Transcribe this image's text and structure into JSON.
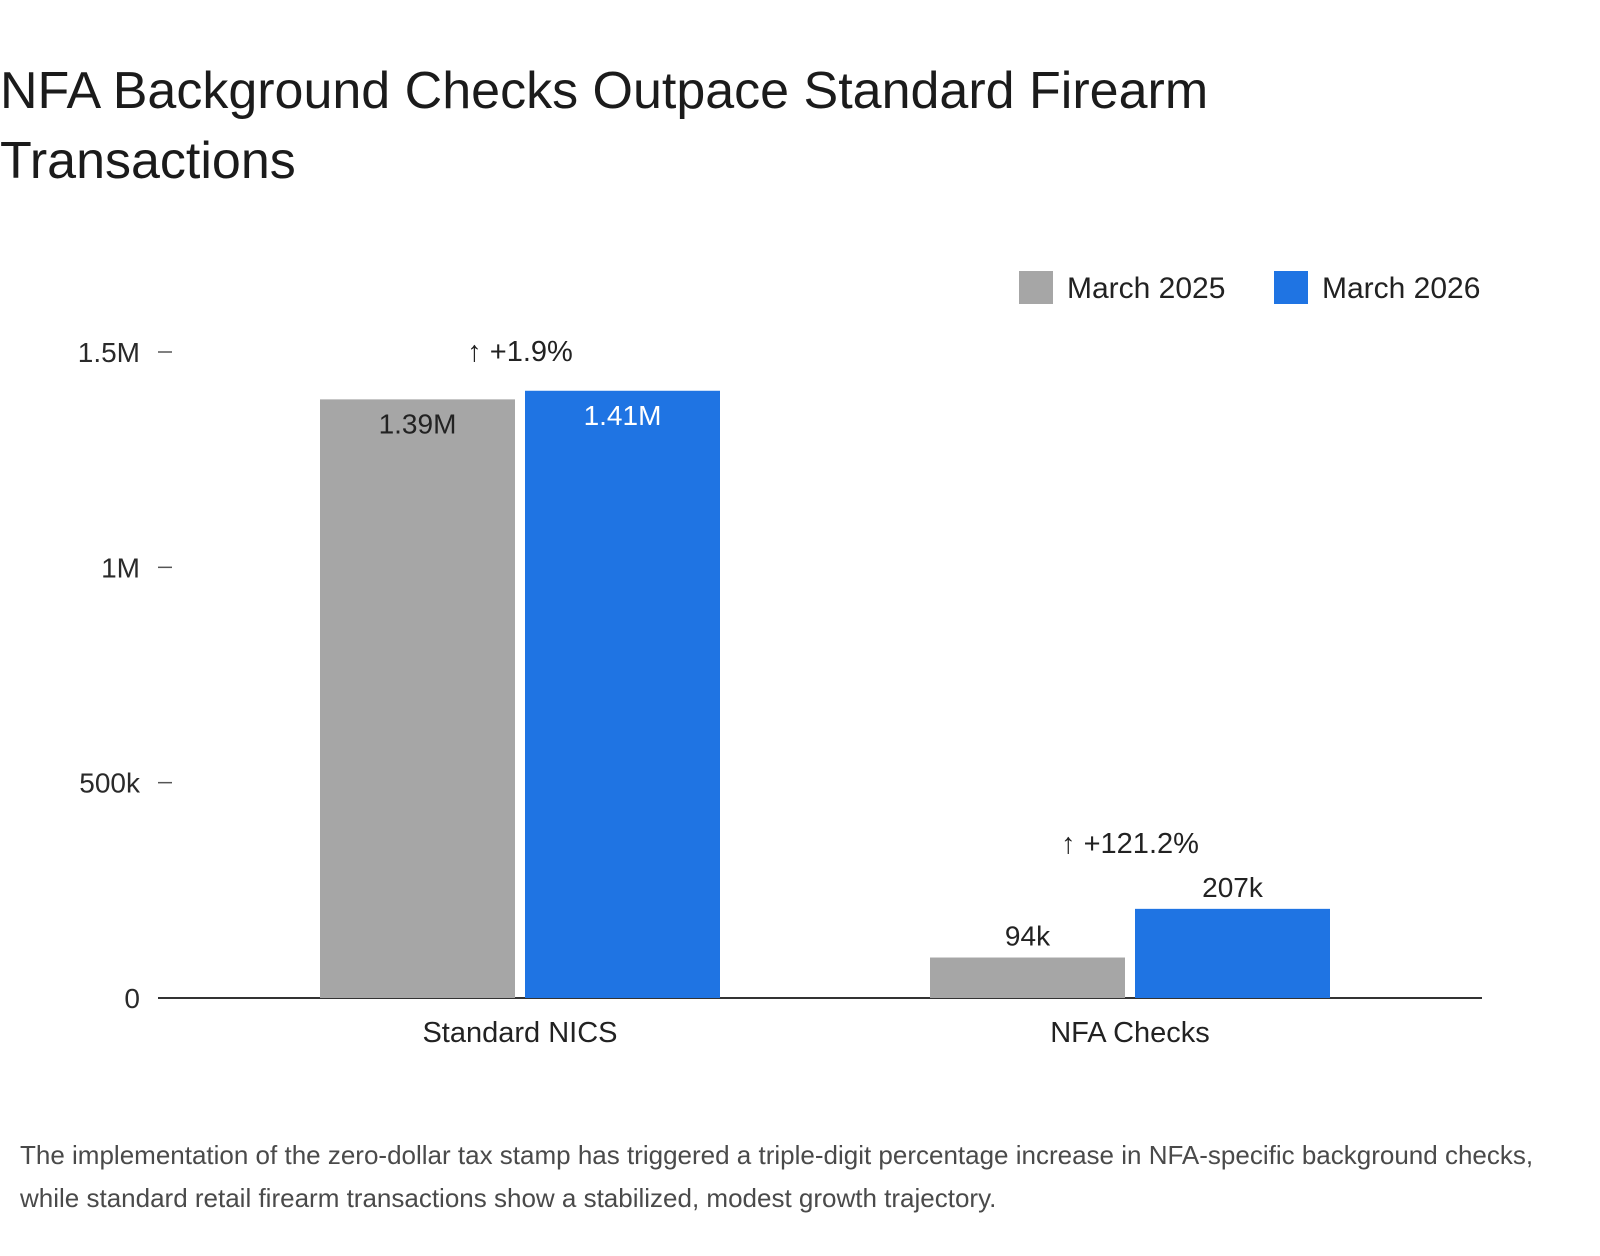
{
  "chart_data": {
    "type": "bar",
    "title": "NFA Background Checks Outpace Standard Firearm Transactions",
    "caption": "The implementation of the zero-dollar tax stamp has triggered a triple-digit percentage increase in NFA-specific background checks, while standard retail firearm transactions show a stabilized, modest growth trajectory.",
    "categories": [
      "Standard NICS",
      "NFA Checks"
    ],
    "series": [
      {
        "name": "March 2025",
        "color": "#a6a6a6",
        "values": [
          1390000,
          94000
        ],
        "labels": [
          "1.39M",
          "94k"
        ]
      },
      {
        "name": "March 2026",
        "color": "#1f74e3",
        "values": [
          1410000,
          207000
        ],
        "labels": [
          "1.41M",
          "207k"
        ]
      }
    ],
    "annotations": [
      "↑ +1.9%",
      "↑ +121.2%"
    ],
    "yticks": [
      0,
      500000,
      1000000,
      1500000
    ],
    "ytick_labels": [
      "0",
      "500k",
      "1M",
      "1.5M"
    ],
    "ylim": [
      0,
      1500000
    ],
    "xlabel": "",
    "ylabel": "",
    "grid": false,
    "legend": "top-right"
  }
}
